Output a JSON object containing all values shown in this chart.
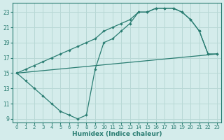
{
  "xlabel": "Humidex (Indice chaleur)",
  "bg_color": "#d4eceb",
  "line_color": "#2a7d72",
  "grid_color": "#b8d8d5",
  "xlim": [
    -0.5,
    23.5
  ],
  "ylim": [
    8.5,
    24.2
  ],
  "xticks": [
    0,
    1,
    2,
    3,
    4,
    5,
    6,
    7,
    8,
    9,
    10,
    11,
    12,
    13,
    14,
    15,
    16,
    17,
    18,
    19,
    20,
    21,
    22,
    23
  ],
  "yticks": [
    9,
    11,
    13,
    15,
    17,
    19,
    21,
    23
  ],
  "upper_curve_x": [
    0,
    1,
    2,
    3,
    4,
    5,
    6,
    7,
    8,
    9,
    10,
    11,
    12,
    13,
    14,
    15,
    16,
    17,
    18,
    19,
    20,
    21,
    22,
    23
  ],
  "upper_curve_y": [
    15,
    15.5,
    16,
    16.5,
    17,
    17.5,
    18,
    18.5,
    19,
    19.5,
    20.5,
    21,
    21.5,
    22,
    23,
    23,
    23.5,
    23.5,
    23.5,
    23,
    22,
    20.5,
    17.5,
    17.5
  ],
  "lower_curve_x": [
    0,
    1,
    2,
    3,
    4,
    5,
    6,
    7,
    8,
    9,
    10,
    11,
    12,
    13,
    14,
    15,
    16,
    17,
    18,
    19,
    20,
    21,
    22,
    23
  ],
  "lower_curve_y": [
    15,
    14,
    13,
    12,
    11,
    10,
    9.5,
    9,
    9.5,
    15.5,
    19,
    19.5,
    20.5,
    21.5,
    23,
    23,
    23.5,
    23.5,
    23.5,
    23,
    22,
    20.5,
    17.5,
    17.5
  ],
  "straight_line_x": [
    0,
    23
  ],
  "straight_line_y": [
    15,
    17.5
  ]
}
